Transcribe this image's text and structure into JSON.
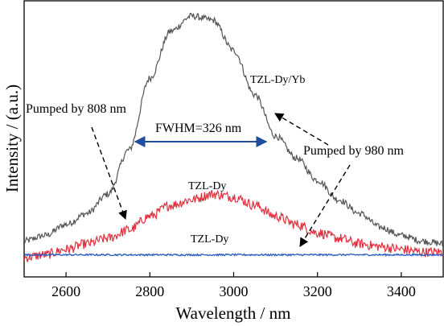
{
  "chart_data": {
    "type": "line",
    "xlabel": "Wavelength / nm",
    "ylabel": "Intensity / (a.u.)",
    "xlim": [
      2500,
      3500
    ],
    "ylim": [
      0,
      1.0
    ],
    "xticks": [
      2600,
      2800,
      3000,
      3200,
      3400
    ],
    "yticks_labeled": false,
    "grid": false,
    "series": [
      {
        "name": "TZL-Dy/Yb",
        "color": "#555555",
        "x": [
          2500,
          2550,
          2600,
          2650,
          2700,
          2750,
          2800,
          2850,
          2900,
          2950,
          3000,
          3050,
          3100,
          3150,
          3200,
          3250,
          3300,
          3350,
          3400,
          3450,
          3500
        ],
        "y": [
          0.13,
          0.15,
          0.19,
          0.23,
          0.3,
          0.46,
          0.72,
          0.89,
          0.945,
          0.93,
          0.82,
          0.66,
          0.51,
          0.43,
          0.35,
          0.28,
          0.23,
          0.18,
          0.15,
          0.13,
          0.12
        ]
      },
      {
        "name": "TZL-Dy",
        "color": "#e0303e",
        "x": [
          2500,
          2550,
          2600,
          2650,
          2700,
          2750,
          2800,
          2850,
          2900,
          2950,
          3000,
          3050,
          3100,
          3150,
          3200,
          3250,
          3300,
          3350,
          3400,
          3450,
          3500
        ],
        "y": [
          0.07,
          0.08,
          0.1,
          0.12,
          0.14,
          0.17,
          0.22,
          0.26,
          0.28,
          0.3,
          0.29,
          0.26,
          0.22,
          0.19,
          0.16,
          0.14,
          0.12,
          0.11,
          0.1,
          0.09,
          0.09
        ]
      },
      {
        "name": "TZL-Dy",
        "color": "#3060c0",
        "x": [
          2500,
          3000,
          3500
        ],
        "y": [
          0.08,
          0.08,
          0.08
        ]
      }
    ],
    "annotations": [
      {
        "text": "TZL-Dy/Yb"
      },
      {
        "text": "TZL-Dy"
      },
      {
        "text": "TZL-Dy"
      },
      {
        "text": "Pumped by 808 nm"
      },
      {
        "text": "Pumped by 980 nm"
      },
      {
        "text": "FWHM=326 nm",
        "color": "#1f4e9c"
      }
    ]
  }
}
